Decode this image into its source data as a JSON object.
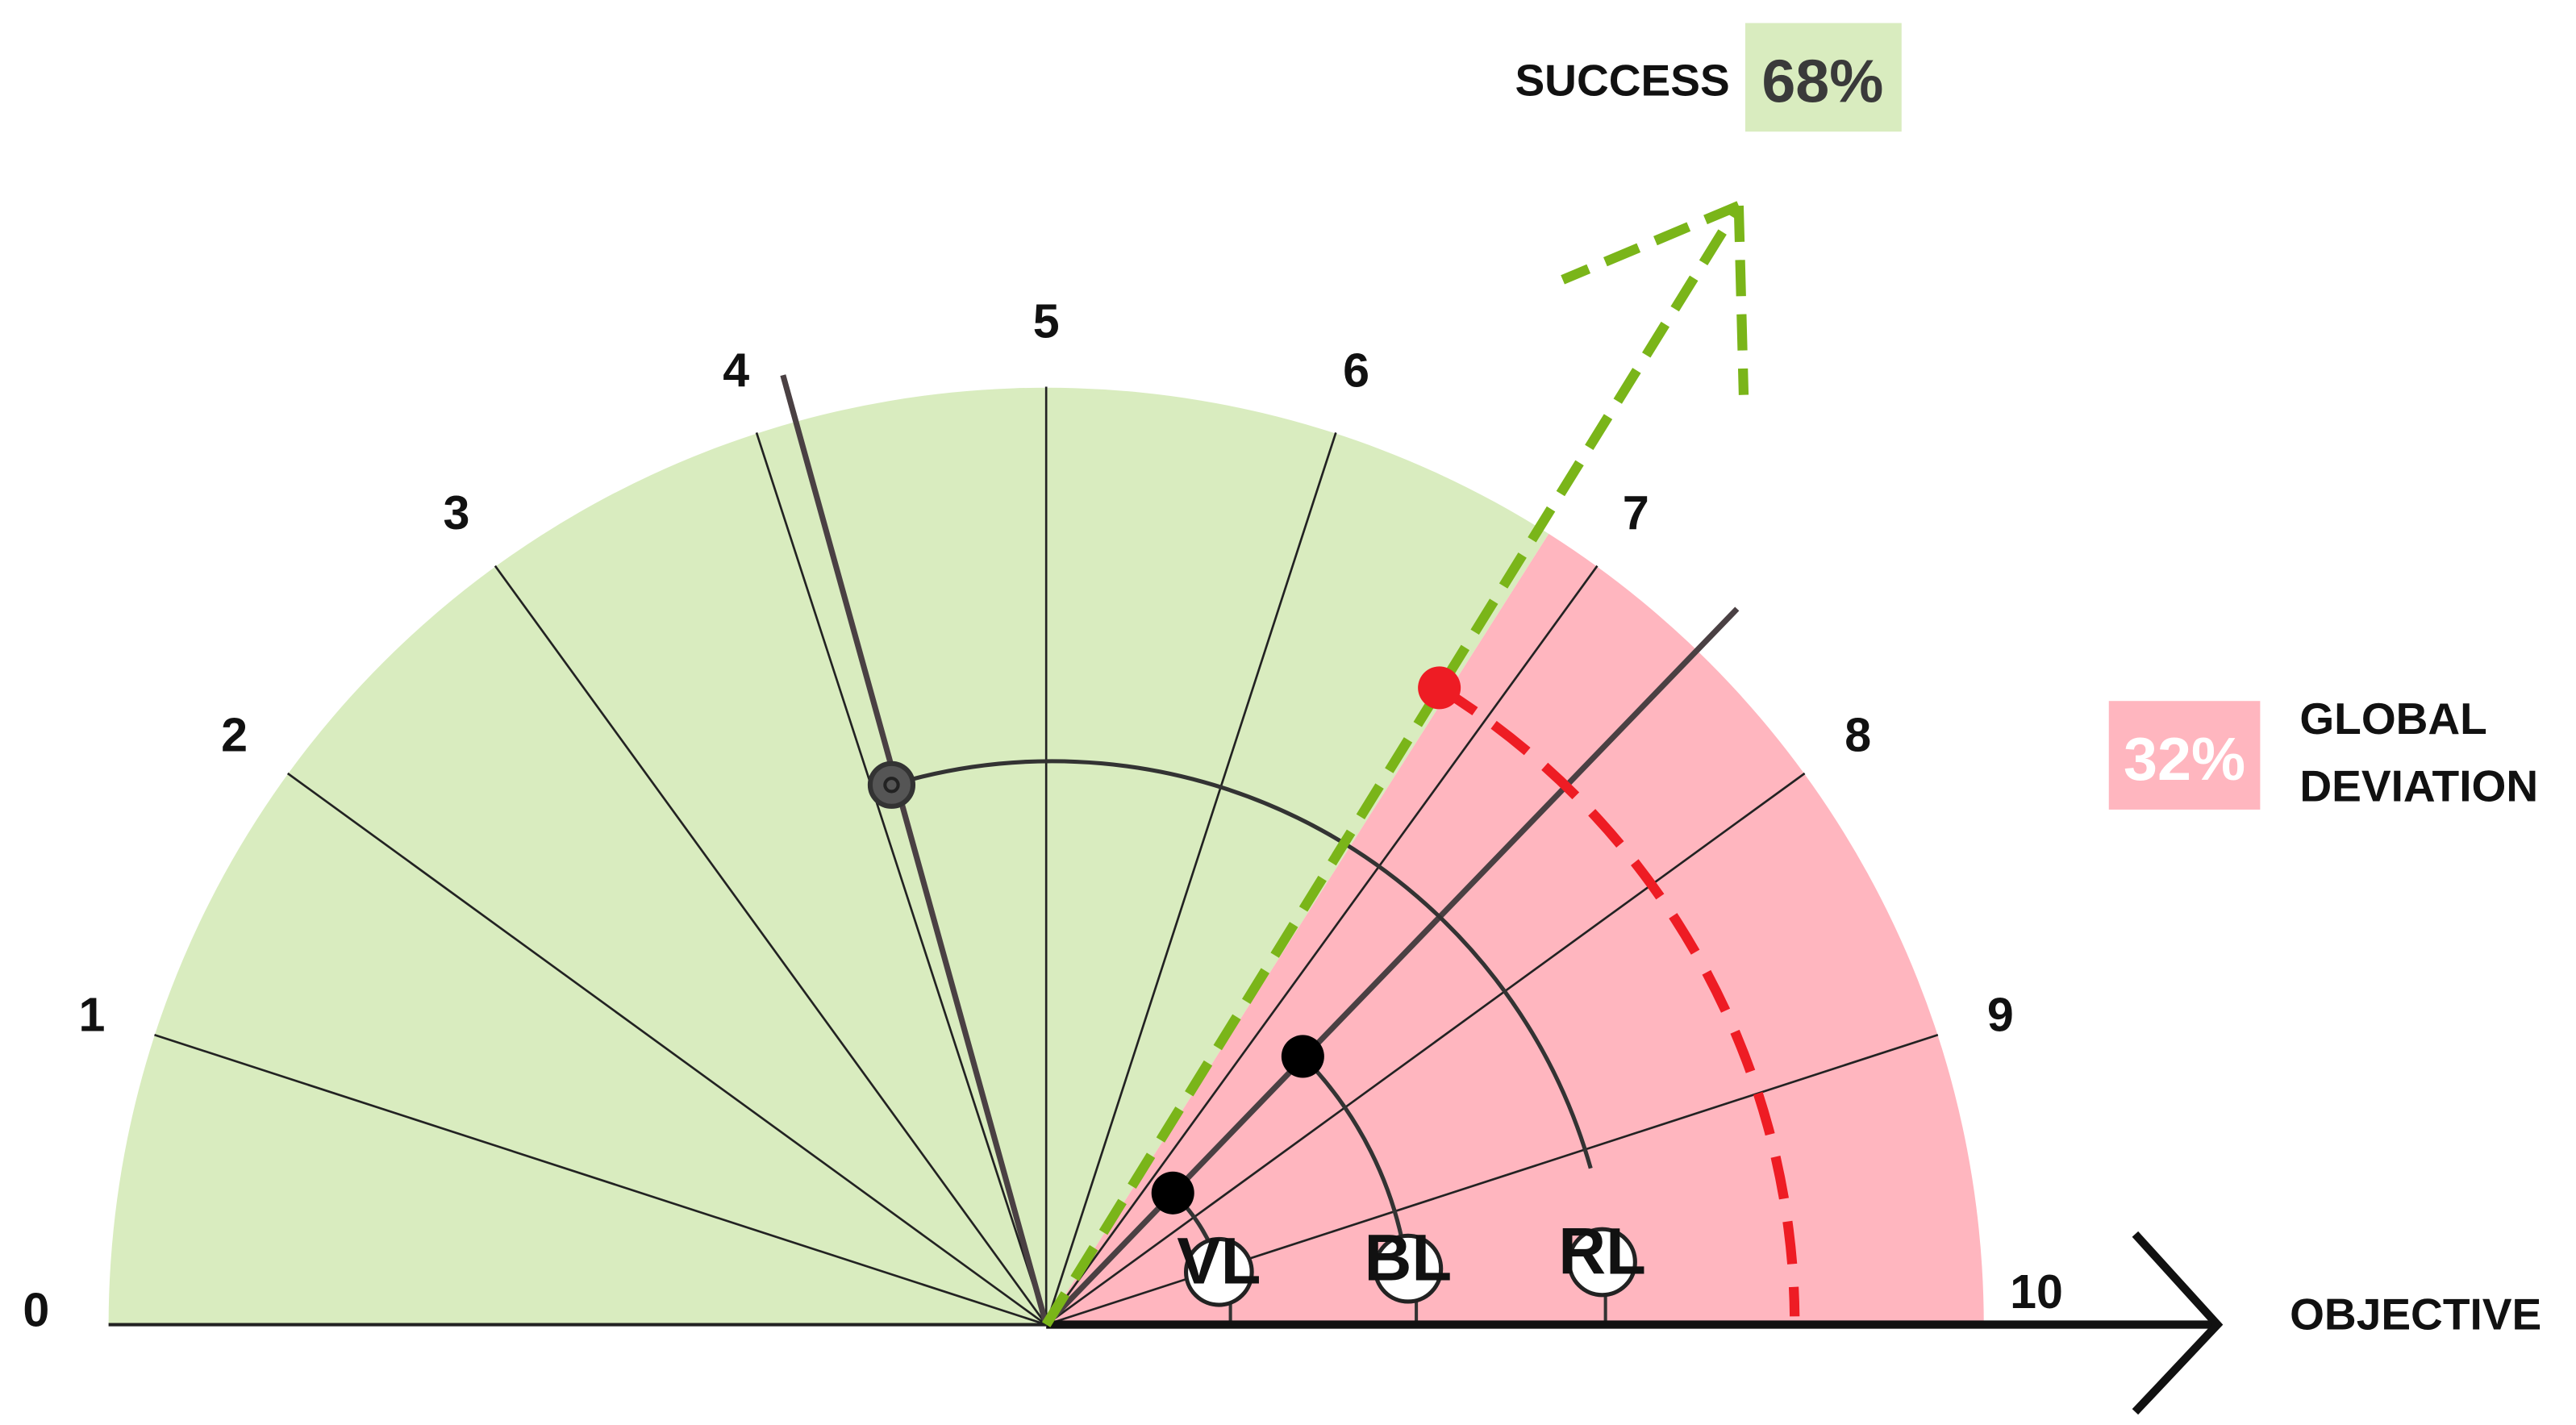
{
  "scale": {
    "min": 0,
    "max": 10,
    "tick_labels": [
      "0",
      "1",
      "2",
      "3",
      "4",
      "5",
      "6",
      "7",
      "8",
      "9",
      "10"
    ]
  },
  "success": {
    "label": "SUCCESS",
    "percent_text": "68%",
    "value": 0.68,
    "color": "#d9ecbf",
    "arrow_color": "#7ab519"
  },
  "deviation": {
    "label_line1": "GLOBAL",
    "label_line2": "DEVIATION",
    "percent_text": "32%",
    "value": 0.32,
    "color": "#ffb6bf",
    "arc_color": "#ee1c24"
  },
  "objective": {
    "label": "OBJECTIVE"
  },
  "markers": [
    {
      "label": "VL",
      "level": 0.19
    },
    {
      "label": "BL",
      "level": 0.39
    },
    {
      "label": "RL",
      "level": 0.6
    }
  ],
  "indicator": {
    "scale_value": 3.9
  }
}
